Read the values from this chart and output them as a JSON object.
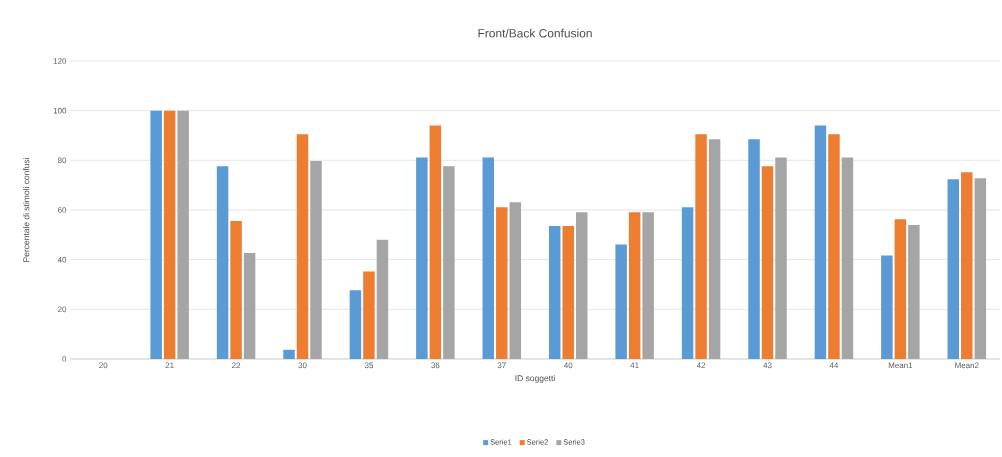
{
  "chart_data": {
    "type": "bar",
    "title": "Front/Back Confusion",
    "xlabel": "ID soggetti",
    "ylabel": "Percentale di stimoli confusi",
    "categories": [
      "20",
      "21",
      "22",
      "30",
      "35",
      "36",
      "37",
      "40",
      "41",
      "42",
      "43",
      "44",
      "Mean1",
      "Mean2"
    ],
    "series": [
      {
        "name": "Serie1",
        "color": "#5b9bd5",
        "values": [
          0,
          100,
          77.6,
          3.7,
          27.7,
          81.1,
          81.1,
          53.6,
          46.1,
          61.1,
          88.5,
          94,
          41.7,
          72.4
        ]
      },
      {
        "name": "Serie2",
        "color": "#ed7d31",
        "values": [
          0,
          100,
          55.6,
          90.5,
          35.2,
          94,
          61.1,
          53.6,
          59.1,
          90.5,
          77.6,
          90.5,
          56.3,
          75.2
        ]
      },
      {
        "name": "Serie3",
        "color": "#a5a5a5",
        "values": [
          0,
          100,
          42.7,
          79.7,
          48,
          77.6,
          63.1,
          59.1,
          59.1,
          88.5,
          81.1,
          81.1,
          54,
          72.8
        ]
      }
    ],
    "ylim": [
      0,
      120
    ],
    "yticks": [
      0,
      20,
      40,
      60,
      80,
      100,
      120
    ],
    "grid": "y",
    "legend": "bottom"
  }
}
